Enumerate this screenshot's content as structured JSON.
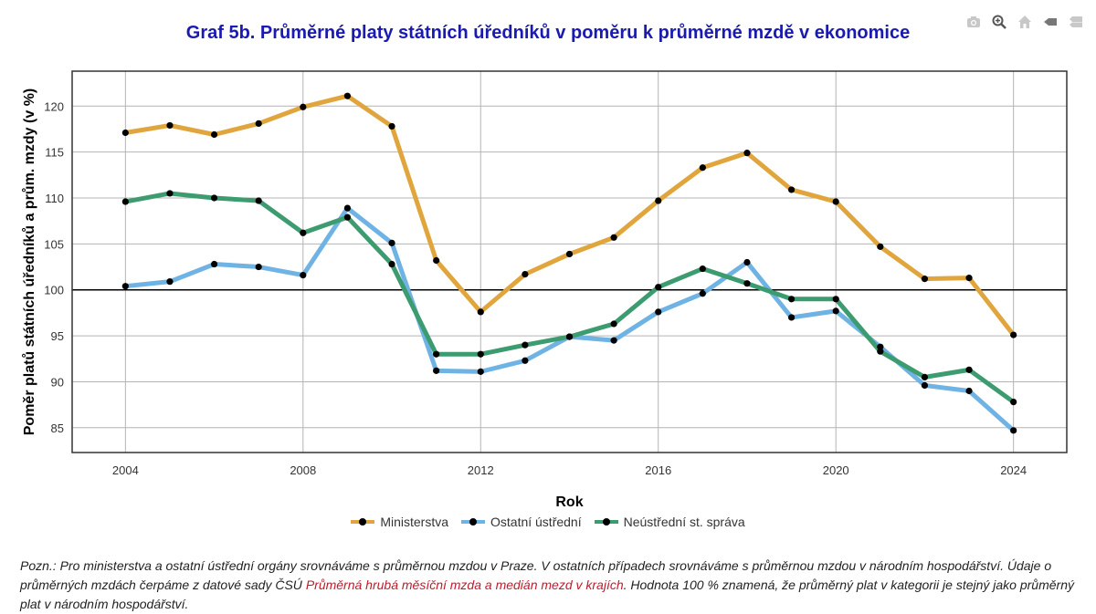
{
  "chart_data": {
    "type": "line",
    "title": "Graf 5b. Průměrné platy státních úředníků v poměru k průměrné mzdě v ekonomice",
    "xlabel": "Rok",
    "ylabel": "Poměr platů státních úředníků a prům. mzdy (v %)",
    "x": [
      2004,
      2005,
      2006,
      2007,
      2008,
      2009,
      2010,
      2011,
      2012,
      2013,
      2014,
      2015,
      2016,
      2017,
      2018,
      2019,
      2020,
      2021,
      2022,
      2023,
      2024
    ],
    "xlim": [
      2002.8,
      2025.2
    ],
    "ylim": [
      82.3,
      123.8
    ],
    "xticks": [
      2004,
      2008,
      2012,
      2016,
      2020,
      2024
    ],
    "yticks": [
      85,
      90,
      95,
      100,
      105,
      110,
      115,
      120
    ],
    "reference_line": 100,
    "grid": true,
    "legend_position": "bottom-center",
    "series": [
      {
        "name": "Ministerstva",
        "color": "#e0a53c",
        "values": [
          117.1,
          117.9,
          116.9,
          118.1,
          119.9,
          121.1,
          117.8,
          103.2,
          97.6,
          101.7,
          103.9,
          105.7,
          109.7,
          113.3,
          114.9,
          110.9,
          109.6,
          104.7,
          101.2,
          101.3,
          95.1
        ]
      },
      {
        "name": "Ostatní ústřední",
        "color": "#6fb3e4",
        "values": [
          100.4,
          100.9,
          102.8,
          102.5,
          101.6,
          108.9,
          105.1,
          91.2,
          91.1,
          92.3,
          94.9,
          94.5,
          97.6,
          99.6,
          103.0,
          97.0,
          97.7,
          93.8,
          89.6,
          89.0,
          84.7
        ]
      },
      {
        "name": "Neústřední st. správa",
        "color": "#3d9b70",
        "values": [
          109.6,
          110.5,
          110.0,
          109.7,
          106.2,
          107.9,
          102.8,
          93.0,
          93.0,
          94.0,
          94.9,
          96.3,
          100.3,
          102.3,
          100.7,
          99.0,
          99.0,
          93.3,
          90.5,
          91.3,
          87.8
        ]
      }
    ]
  },
  "note": {
    "before": "Pozn.: Pro ministerstva a ostatní ústřední orgány srovnáváme s průměrnou mzdou v Praze. V ostatních případech srovnáváme s průměrnou mzdou v národním hospodářství. Údaje o průměrných mzdách čerpáme z datové sady ČSÚ ",
    "link": "Průměrná hrubá měsíční mzda a medián mezd v krajích",
    "after": ". Hodnota 100 % znamená, že průměrný plat v kategorii je stejný jako průměrný plat v národním hospodářství."
  },
  "modebar": {
    "icons": [
      "camera-icon",
      "zoom-icon",
      "home-icon",
      "spike-icon",
      "compare-icon"
    ]
  }
}
